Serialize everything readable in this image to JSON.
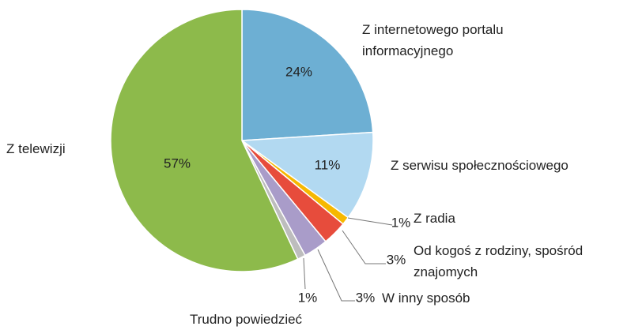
{
  "chart_data": {
    "type": "pie",
    "categories": [
      "Z internetowego portalu informacyjnego",
      "Z serwisu społecznościowego",
      "Z radia",
      "Od kogoś z rodziny, spośród znajomych",
      "W inny sposób",
      "Trudno powiedzieć",
      "Z telewizji"
    ],
    "values": [
      24,
      11,
      1,
      3,
      3,
      1,
      57
    ],
    "value_labels": [
      "24%",
      "11%",
      "1%",
      "3%",
      "3%",
      "1%",
      "57%"
    ],
    "colors": [
      "#6dafd3",
      "#b2d9f1",
      "#f6b800",
      "#e74c3c",
      "#a99cc9",
      "#bdbdbd",
      "#8dba4b"
    ]
  }
}
